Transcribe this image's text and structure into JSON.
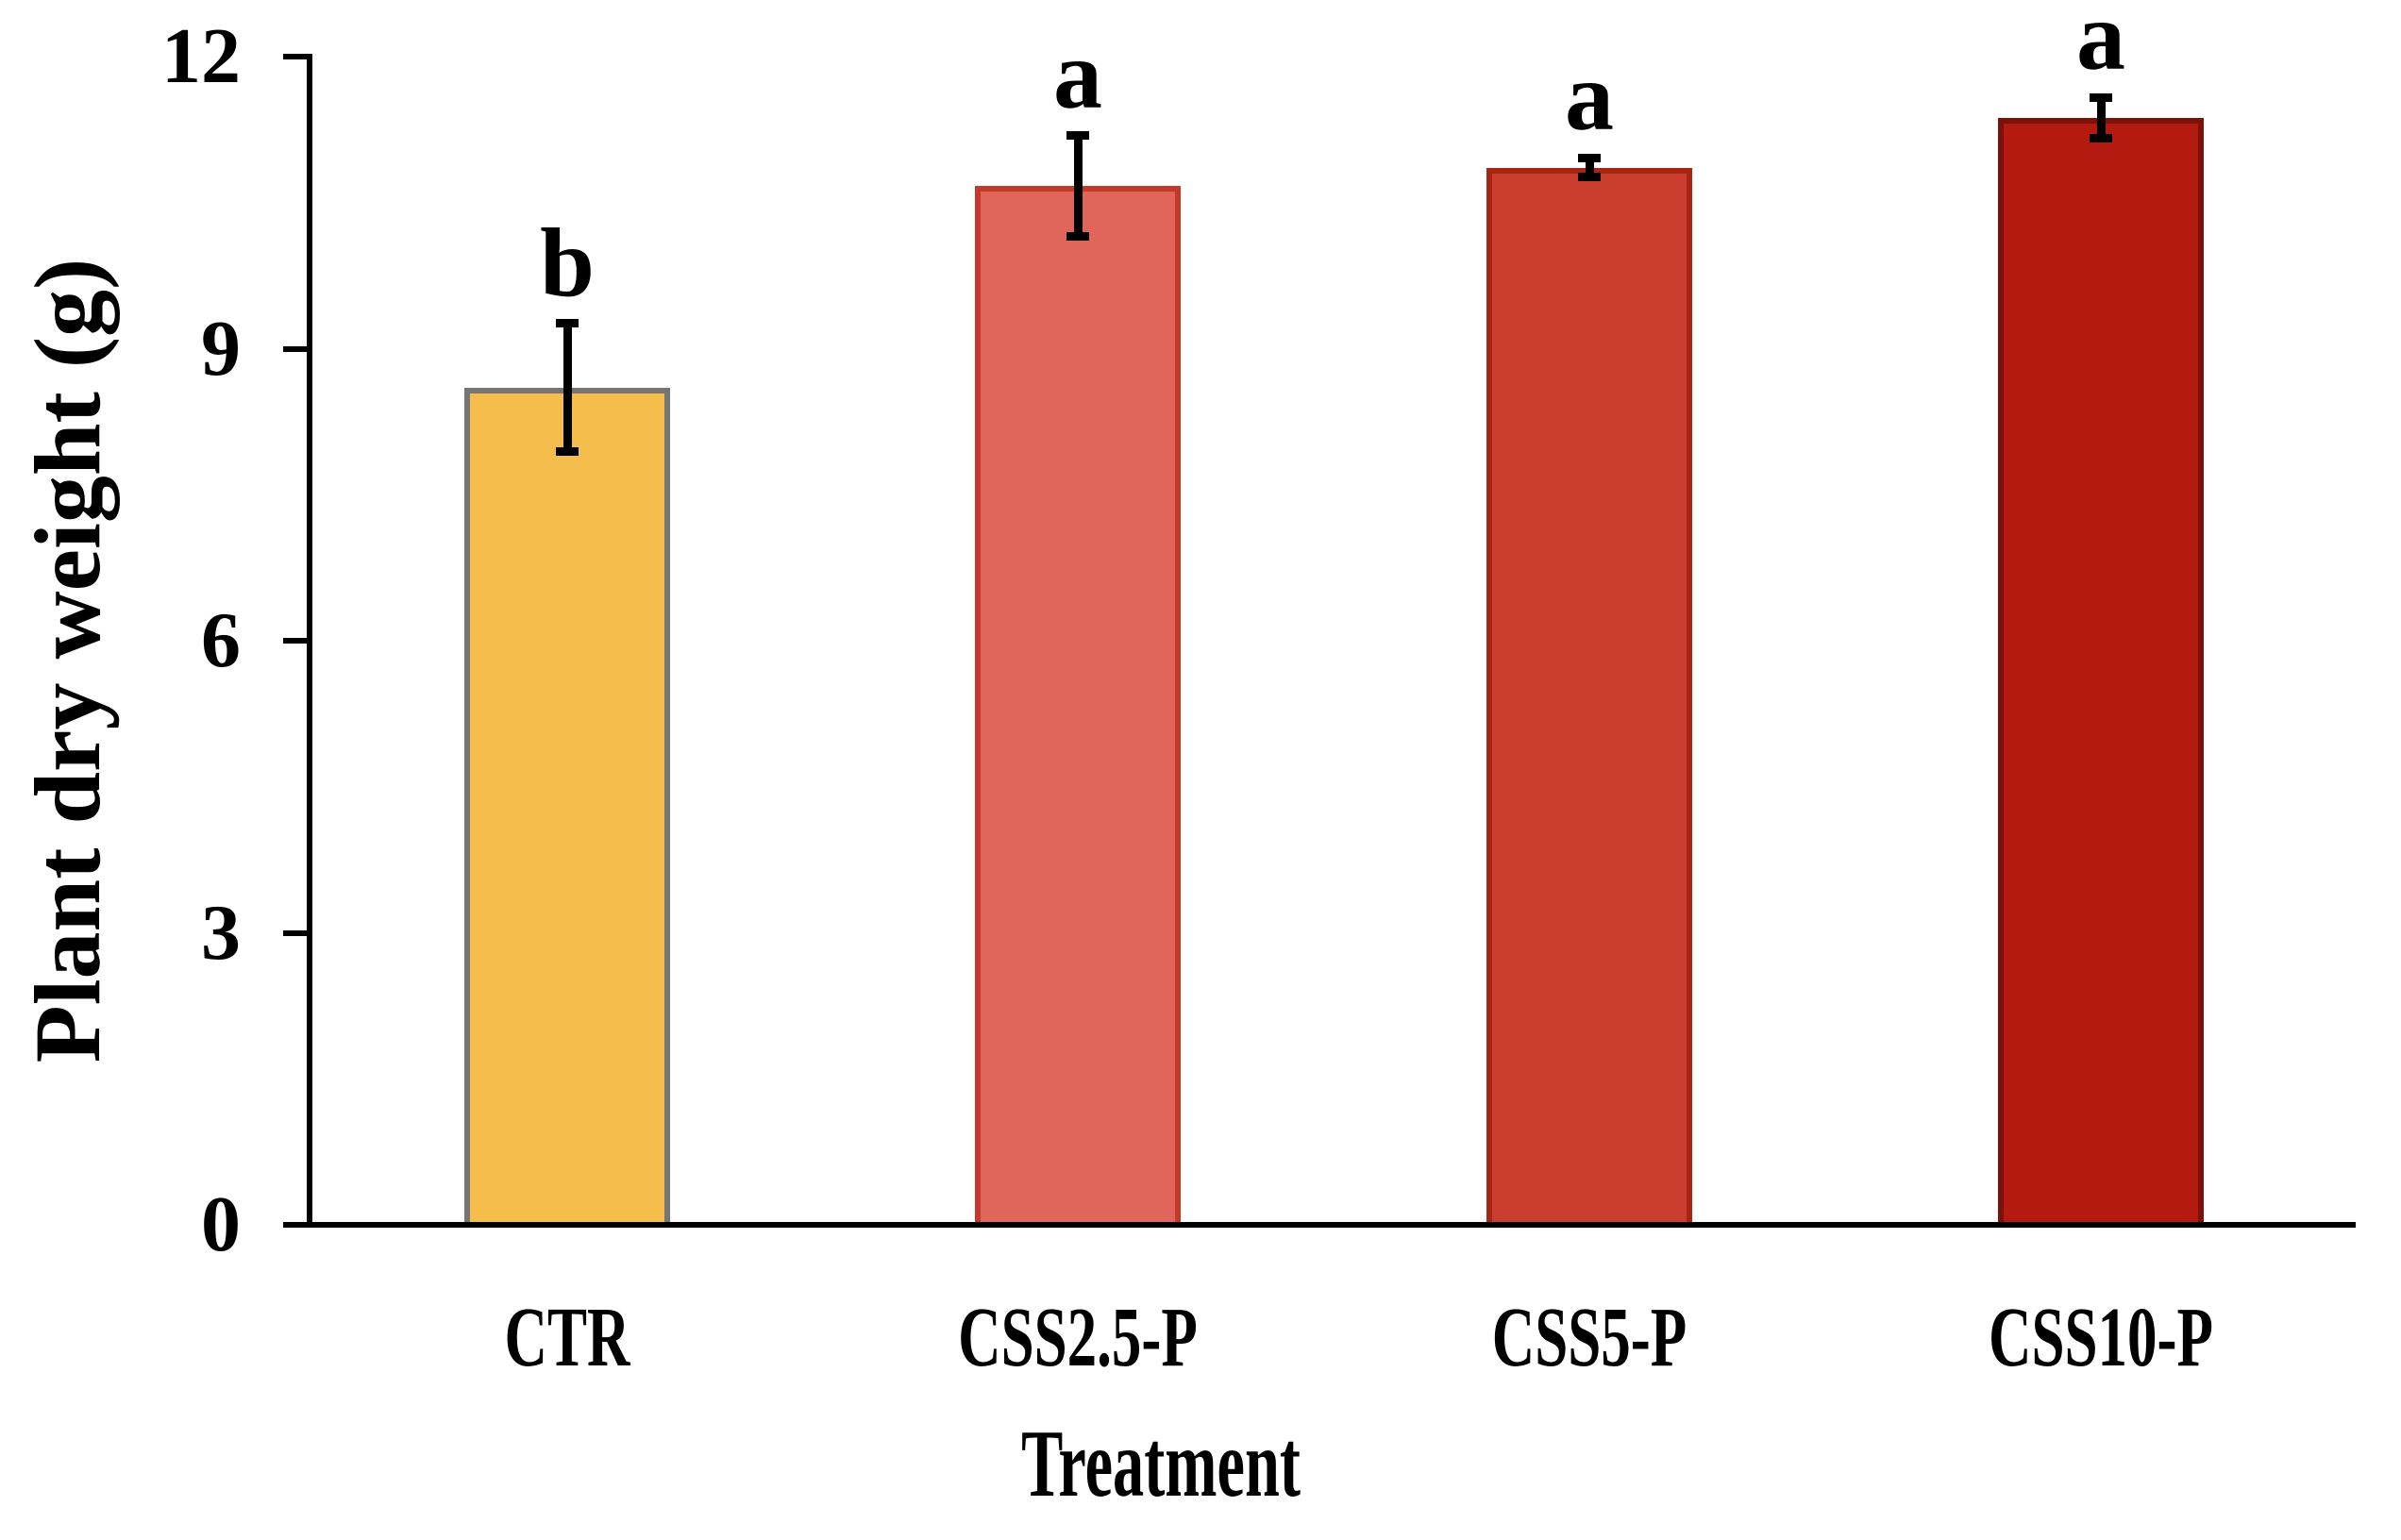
{
  "figure": {
    "background": "#FFFFFF",
    "axis_color": "#000000",
    "error_bar_color": "#000000"
  },
  "chart_data": {
    "type": "bar",
    "title": "",
    "xlabel": "Treatment",
    "ylabel": "Plant dry weight (g)",
    "categories": [
      "CTR",
      "CSS2.5-P",
      "CSS5-P",
      "CSS10-P"
    ],
    "values": [
      8.6,
      10.67,
      10.86,
      11.37
    ],
    "errors": [
      0.66,
      0.52,
      0.1,
      0.21
    ],
    "sig_letters": [
      "b",
      "a",
      "a",
      "a"
    ],
    "bar_colors": [
      "#F4BD4C",
      "#E0655A",
      "#C93E2F",
      "#B41A0F"
    ],
    "bar_edge_colors": [
      "#757575",
      "#C43A2A",
      "#A82415",
      "#7B1108"
    ],
    "yticks": [
      0,
      3,
      6,
      9,
      12
    ],
    "ylim": [
      0,
      12
    ],
    "grid": false,
    "legend": null
  }
}
